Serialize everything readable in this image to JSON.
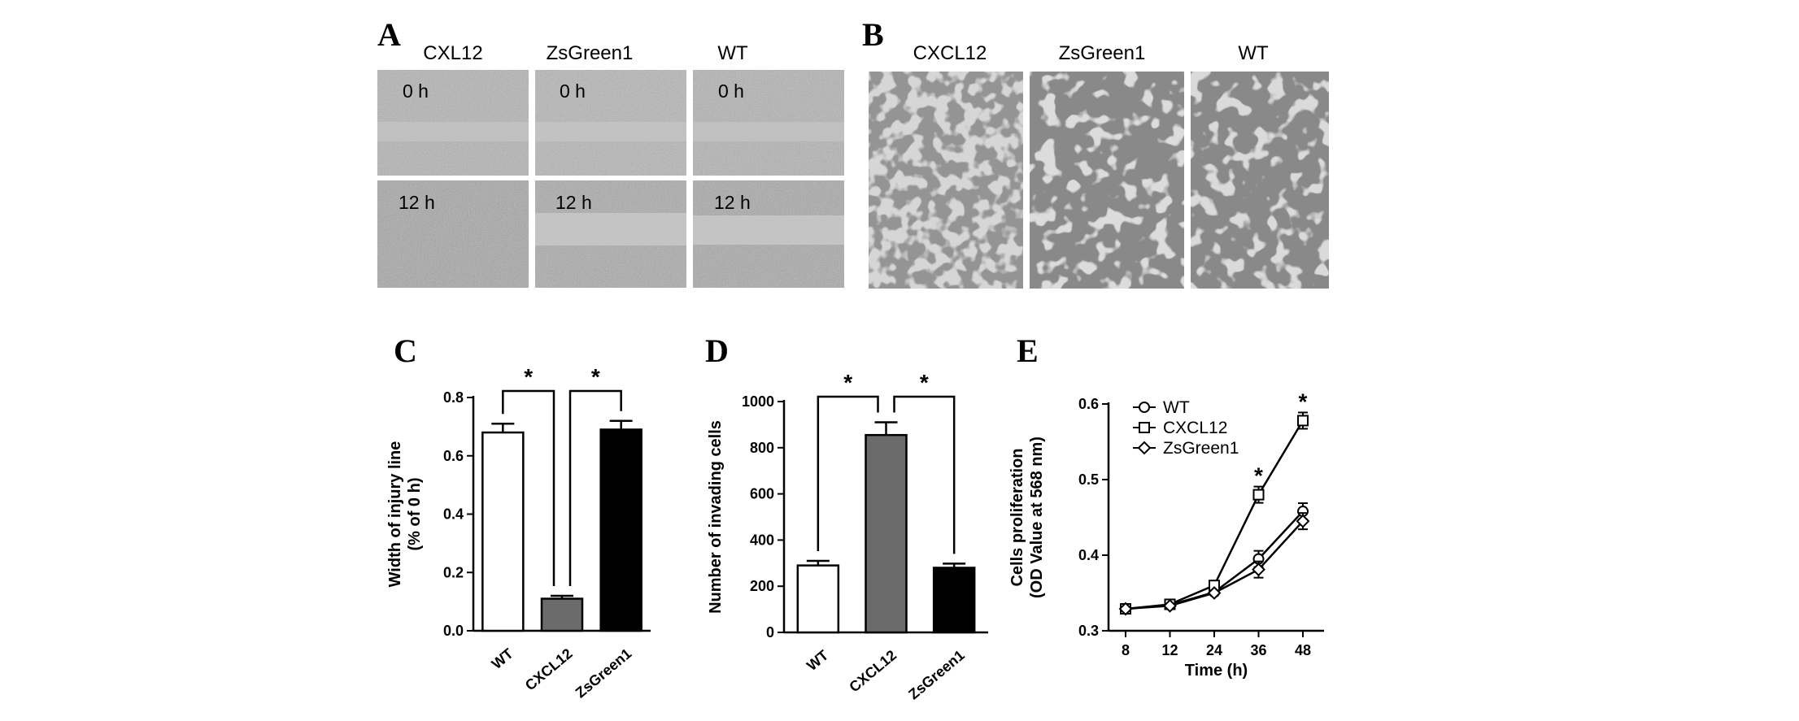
{
  "panel_letters": [
    "A",
    "B",
    "C",
    "D",
    "E"
  ],
  "panel_a": {
    "columns": [
      "CXL12",
      "ZsGreen1",
      "WT"
    ],
    "rows": [
      "0 h",
      "12 h"
    ]
  },
  "panel_b": {
    "columns": [
      "CXCL12",
      "ZsGreen1",
      "WT"
    ]
  },
  "colors": {
    "white_bar": "#ffffff",
    "gray_bar": "#6b6b6b",
    "black_bar": "#000000"
  },
  "chart_data": [
    {
      "type": "bar",
      "panel": "C",
      "categories": [
        "WT",
        "CXCL12",
        "ZsGreen1"
      ],
      "values": [
        0.68,
        0.11,
        0.69
      ],
      "errors": [
        0.03,
        0.01,
        0.03
      ],
      "ylabel_line1": "Width of injury line",
      "ylabel_line2": "(% of 0 h)",
      "ylim": [
        0,
        0.8
      ],
      "yticks": [
        "0.0",
        "0.2",
        "0.4",
        "0.6",
        "0.8"
      ],
      "significance": [
        "*",
        "*"
      ]
    },
    {
      "type": "bar",
      "panel": "D",
      "categories": [
        "WT",
        "CXCL12",
        "ZsGreen1"
      ],
      "values": [
        290,
        855,
        280
      ],
      "errors": [
        20,
        55,
        18
      ],
      "ylabel": "Number of invading cells",
      "ylim": [
        0,
        1000
      ],
      "yticks": [
        "0",
        "200",
        "400",
        "600",
        "800",
        "1000"
      ],
      "significance": [
        "*",
        "*"
      ]
    },
    {
      "type": "line",
      "panel": "E",
      "x": [
        "8",
        "12",
        "24",
        "36",
        "48"
      ],
      "series": [
        {
          "name": "WT",
          "marker": "circle",
          "values": [
            0.329,
            0.334,
            0.351,
            0.395,
            0.458
          ]
        },
        {
          "name": "CXCL12",
          "marker": "square",
          "values": [
            0.329,
            0.335,
            0.36,
            0.48,
            0.578
          ]
        },
        {
          "name": "ZsGreen1",
          "marker": "diamond",
          "values": [
            0.329,
            0.333,
            0.35,
            0.381,
            0.445
          ]
        }
      ],
      "xlabel": "Time (h)",
      "ylabel_line1": "Cells proliferation",
      "ylabel_line2": "(OD Value at 568 nm)",
      "ylim": [
        0.3,
        0.6
      ],
      "yticks": [
        "0.3",
        "0.4",
        "0.5",
        "0.6"
      ],
      "significance": [
        "*",
        "*"
      ]
    }
  ]
}
